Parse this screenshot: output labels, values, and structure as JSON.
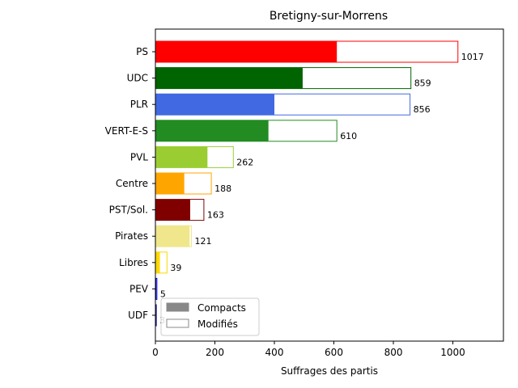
{
  "chart_data": {
    "type": "bar",
    "orientation": "horizontal",
    "stacked_overlay": true,
    "title": "Bretigny-sur-Morrens",
    "xlabel": "Suffrages des partis",
    "ylabel": "",
    "xlim": [
      0,
      1170
    ],
    "xticks": [
      0,
      200,
      400,
      600,
      800,
      1000
    ],
    "grid": false,
    "legend_position": "bottom-left",
    "legend": [
      {
        "label": "Compacts",
        "style": "filled",
        "color": "#888888"
      },
      {
        "label": "Modifiés",
        "style": "outline",
        "color": "#888888"
      }
    ],
    "categories": [
      "PS",
      "UDC",
      "PLR",
      "VERT-E-S",
      "PVL",
      "Centre",
      "PST/Sol.",
      "Pirates",
      "Libres",
      "PEV",
      "UDF"
    ],
    "colors": [
      "#ff0000",
      "#006400",
      "#4169e1",
      "#228b22",
      "#9acd32",
      "#ffa500",
      "#800000",
      "#f0e68c",
      "#ffd700",
      "#0000cd",
      "#00008b"
    ],
    "series": [
      {
        "name": "Compacts",
        "values": [
          610,
          495,
          400,
          380,
          175,
          97,
          117,
          115,
          15,
          3,
          2
        ]
      },
      {
        "name": "Modifiés",
        "values": [
          407,
          364,
          456,
          230,
          87,
          91,
          46,
          6,
          24,
          2,
          1
        ]
      }
    ],
    "totals": [
      1017,
      859,
      856,
      610,
      262,
      188,
      163,
      121,
      39,
      5,
      3
    ],
    "total_labels": [
      "1017",
      "859",
      "856",
      "610",
      "262",
      "188",
      "163",
      "121",
      "39",
      "5",
      "3"
    ]
  }
}
